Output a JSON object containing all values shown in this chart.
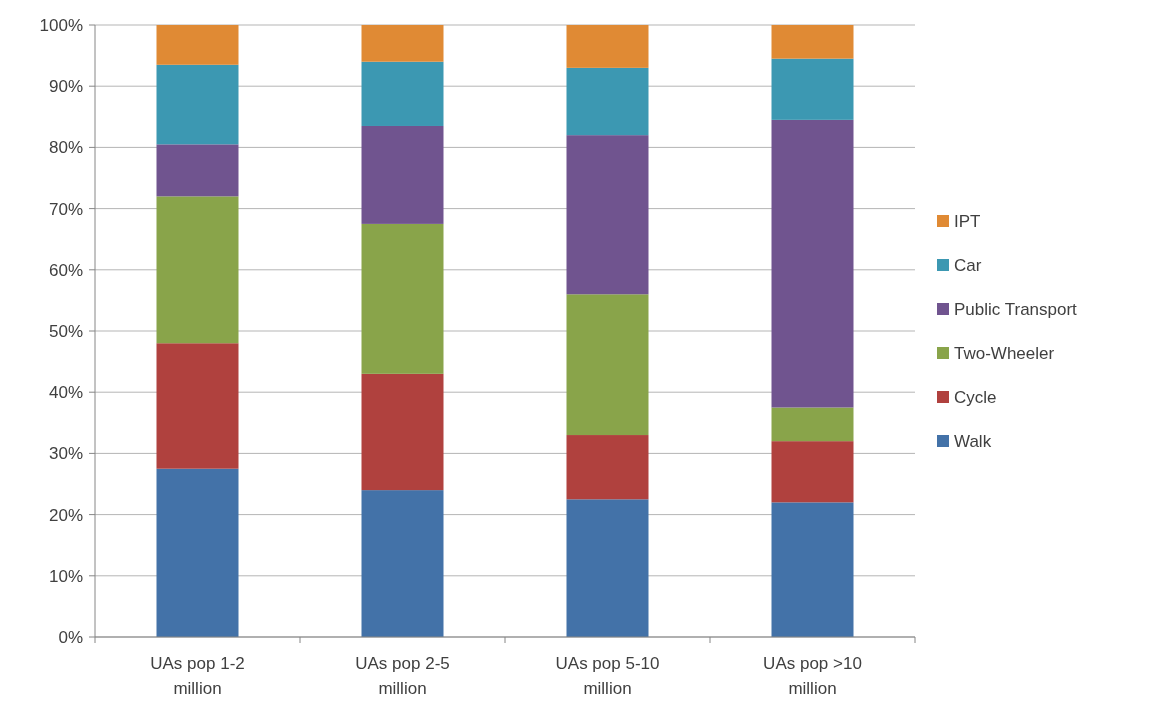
{
  "chart_data": {
    "type": "bar",
    "stacked": true,
    "categories": [
      "UAs pop 1-2 million",
      "UAs pop 2-5 million",
      "UAs pop 5-10 million",
      "UAs pop >10 million"
    ],
    "series": [
      {
        "name": "Walk",
        "color": "#4372a8",
        "values": [
          27.5,
          24,
          22.5,
          22
        ]
      },
      {
        "name": "Cycle",
        "color": "#b0413e",
        "values": [
          20.5,
          19,
          10.5,
          10
        ]
      },
      {
        "name": "Two-Wheeler",
        "color": "#89a44a",
        "values": [
          24,
          24.5,
          23,
          5.5
        ]
      },
      {
        "name": "Public Transport",
        "color": "#70548f",
        "values": [
          8.5,
          16,
          26,
          47
        ]
      },
      {
        "name": "Car",
        "color": "#3c98b2",
        "values": [
          13,
          10.5,
          11,
          10
        ]
      },
      {
        "name": "IPT",
        "color": "#e08a34",
        "values": [
          6.5,
          6,
          7,
          5.5
        ]
      }
    ],
    "ylim": [
      0,
      100
    ],
    "yticks": [
      {
        "value": 0,
        "label": "0%"
      },
      {
        "value": 10,
        "label": "10%"
      },
      {
        "value": 20,
        "label": "20%"
      },
      {
        "value": 30,
        "label": "30%"
      },
      {
        "value": 40,
        "label": "40%"
      },
      {
        "value": 50,
        "label": "50%"
      },
      {
        "value": 60,
        "label": "60%"
      },
      {
        "value": 70,
        "label": "70%"
      },
      {
        "value": 80,
        "label": "80%"
      },
      {
        "value": 90,
        "label": "90%"
      },
      {
        "value": 100,
        "label": "100%"
      }
    ],
    "grid": "y",
    "legend": "right"
  }
}
